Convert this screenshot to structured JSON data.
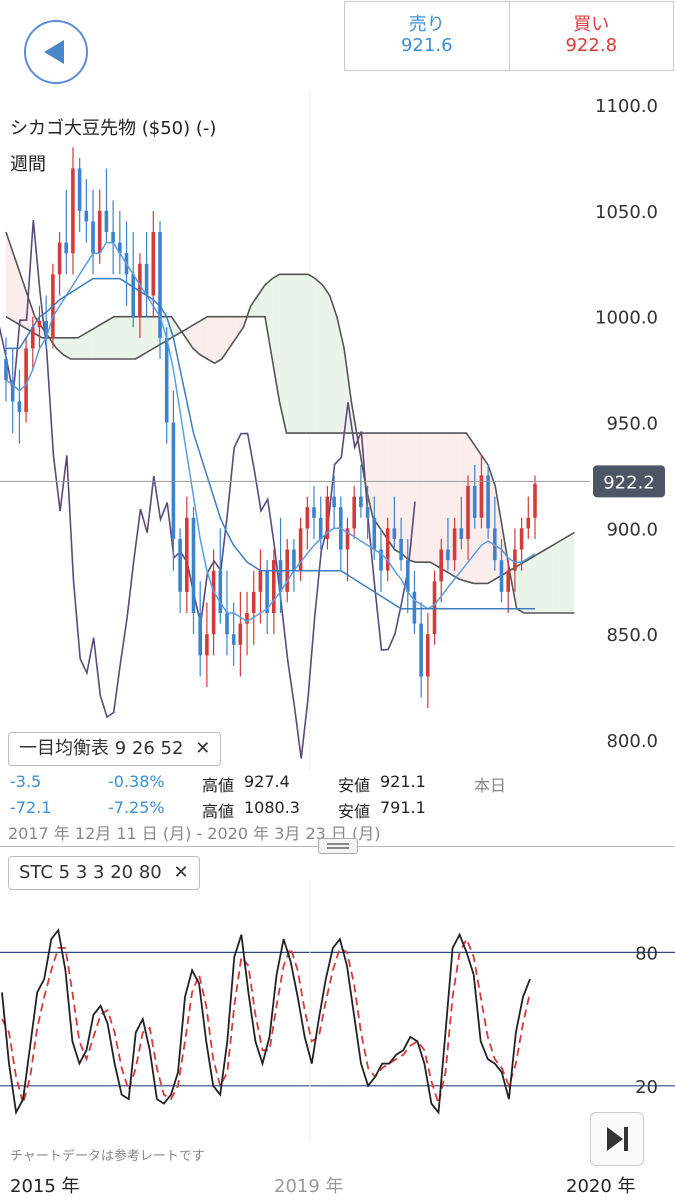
{
  "header": {
    "sell_label": "売り",
    "sell_value": "921.6",
    "buy_label": "買い",
    "buy_value": "922.8"
  },
  "instrument": {
    "name": "シカゴ大豆先物 ($50) (-)",
    "period": "週間"
  },
  "chart_data": [
    {
      "type": "candlestick",
      "title": "シカゴ大豆先物 ($50) (-)",
      "yticks": [
        "1100.0",
        "1050.0",
        "1000.0",
        "950.0",
        "900.0",
        "850.0",
        "800.0"
      ],
      "ylim": [
        790,
        1110
      ],
      "current_price": 922.2,
      "current_price_label": "922.2",
      "indicator": {
        "name": "一目均衡表",
        "params": "9 26 52"
      },
      "candles": [
        [
          980,
          990,
          960,
          970
        ],
        [
          970,
          985,
          945,
          960
        ],
        [
          960,
          975,
          940,
          955
        ],
        [
          955,
          990,
          950,
          985
        ],
        [
          985,
          1000,
          975,
          995
        ],
        [
          995,
          1005,
          985,
          998
        ],
        [
          998,
          1010,
          985,
          990
        ],
        [
          990,
          1025,
          985,
          1020
        ],
        [
          1020,
          1040,
          1010,
          1035
        ],
        [
          1035,
          1060,
          1020,
          1030
        ],
        [
          1030,
          1080,
          1020,
          1070
        ],
        [
          1070,
          1075,
          1040,
          1050
        ],
        [
          1050,
          1065,
          1035,
          1045
        ],
        [
          1045,
          1060,
          1020,
          1030
        ],
        [
          1030,
          1060,
          1025,
          1050
        ],
        [
          1050,
          1070,
          1035,
          1040
        ],
        [
          1040,
          1055,
          1020,
          1035
        ],
        [
          1035,
          1050,
          1020,
          1030
        ],
        [
          1030,
          1045,
          1005,
          1020
        ],
        [
          1020,
          1040,
          995,
          1000
        ],
        [
          1000,
          1030,
          990,
          1025
        ],
        [
          1025,
          1040,
          1000,
          1010
        ],
        [
          1010,
          1050,
          1000,
          1040
        ],
        [
          1040,
          1045,
          980,
          990
        ],
        [
          990,
          995,
          940,
          950
        ],
        [
          950,
          965,
          880,
          895
        ],
        [
          895,
          900,
          860,
          870
        ],
        [
          870,
          915,
          860,
          905
        ],
        [
          905,
          910,
          850,
          860
        ],
        [
          860,
          875,
          830,
          840
        ],
        [
          840,
          865,
          825,
          850
        ],
        [
          850,
          890,
          840,
          880
        ],
        [
          880,
          900,
          855,
          860
        ],
        [
          860,
          880,
          840,
          850
        ],
        [
          850,
          865,
          835,
          845
        ],
        [
          845,
          870,
          830,
          855
        ],
        [
          855,
          870,
          840,
          860
        ],
        [
          860,
          880,
          845,
          870
        ],
        [
          870,
          890,
          855,
          880
        ],
        [
          880,
          885,
          850,
          860
        ],
        [
          860,
          890,
          850,
          885
        ],
        [
          885,
          905,
          860,
          870
        ],
        [
          870,
          895,
          865,
          890
        ],
        [
          890,
          895,
          870,
          880
        ],
        [
          880,
          905,
          875,
          900
        ],
        [
          900,
          915,
          890,
          910
        ],
        [
          910,
          920,
          895,
          905
        ],
        [
          905,
          915,
          890,
          895
        ],
        [
          895,
          920,
          890,
          915
        ],
        [
          915,
          925,
          900,
          910
        ],
        [
          910,
          915,
          880,
          890
        ],
        [
          890,
          905,
          875,
          900
        ],
        [
          900,
          920,
          895,
          915
        ],
        [
          915,
          930,
          905,
          910
        ],
        [
          910,
          920,
          895,
          905
        ],
        [
          905,
          915,
          885,
          890
        ],
        [
          890,
          900,
          870,
          880
        ],
        [
          880,
          905,
          875,
          900
        ],
        [
          900,
          915,
          890,
          895
        ],
        [
          895,
          905,
          880,
          885
        ],
        [
          885,
          895,
          860,
          870
        ],
        [
          870,
          880,
          850,
          855
        ],
        [
          855,
          865,
          820,
          830
        ],
        [
          830,
          860,
          815,
          850
        ],
        [
          850,
          880,
          845,
          875
        ],
        [
          875,
          895,
          865,
          890
        ],
        [
          890,
          905,
          880,
          885
        ],
        [
          885,
          905,
          880,
          900
        ],
        [
          900,
          915,
          890,
          895
        ],
        [
          895,
          925,
          885,
          920
        ],
        [
          920,
          930,
          900,
          905
        ],
        [
          905,
          935,
          900,
          925
        ],
        [
          925,
          930,
          895,
          900
        ],
        [
          900,
          915,
          880,
          885
        ],
        [
          885,
          895,
          865,
          870
        ],
        [
          870,
          885,
          860,
          880
        ],
        [
          880,
          900,
          870,
          890
        ],
        [
          890,
          905,
          880,
          900
        ],
        [
          900,
          915,
          895,
          905
        ],
        [
          905,
          925,
          895,
          921
        ]
      ],
      "ichimoku_lines": {
        "tenkan": [
          970,
          968,
          965,
          968,
          975,
          985,
          990,
          1000,
          1005,
          1010,
          1015,
          1020,
          1025,
          1030,
          1030,
          1035,
          1035,
          1030,
          1025,
          1020,
          1015,
          1010,
          1005,
          1000,
          990,
          975,
          955,
          935,
          915,
          895,
          880,
          870,
          865,
          860,
          860,
          858,
          856,
          858,
          860,
          862,
          866,
          870,
          875,
          880,
          884,
          888,
          892,
          895,
          898,
          900,
          900,
          898,
          896,
          894,
          892,
          890,
          888,
          885,
          880,
          876,
          870,
          866,
          864,
          862,
          864,
          868,
          872,
          876,
          880,
          884,
          888,
          892,
          894,
          892,
          890,
          886,
          884,
          884,
          886,
          888
        ],
        "kijun": [
          985,
          985,
          985,
          990,
          995,
          1000,
          1002,
          1005,
          1008,
          1010,
          1012,
          1014,
          1016,
          1018,
          1018,
          1018,
          1018,
          1018,
          1016,
          1014,
          1012,
          1010,
          1008,
          1005,
          1000,
          990,
          975,
          960,
          945,
          935,
          925,
          915,
          905,
          898,
          892,
          888,
          884,
          882,
          880,
          880,
          880,
          880,
          880,
          880,
          880,
          880,
          880,
          880,
          880,
          880,
          880,
          878,
          876,
          874,
          872,
          870,
          868,
          866,
          864,
          862,
          862,
          862,
          862,
          862,
          862,
          862,
          862,
          862,
          862,
          862,
          862,
          862,
          862,
          862,
          862,
          862,
          862,
          862,
          862,
          862
        ]
      },
      "ichimoku_cloud": {
        "span_a": [
          1000,
          998,
          996,
          994,
          992,
          990,
          990,
          990,
          990,
          990,
          990,
          992,
          994,
          996,
          998,
          1000,
          1000,
          1000,
          1000,
          1000,
          1000,
          1000,
          1000,
          1000,
          995,
          990,
          985,
          982,
          980,
          978,
          980,
          985,
          990,
          995,
          1005,
          1010,
          1015,
          1018,
          1020,
          1020,
          1020,
          1020,
          1020,
          1018,
          1015,
          1010,
          1000,
          985,
          960,
          940,
          920,
          905,
          900,
          895,
          890,
          888,
          885,
          884,
          884,
          884,
          882,
          880,
          878,
          876,
          875,
          874,
          874,
          874,
          876,
          878,
          880,
          882,
          884,
          886,
          888,
          890,
          892,
          894,
          896,
          898
        ],
        "span_b": [
          1040,
          1030,
          1020,
          1010,
          1000,
          995,
          990,
          985,
          982,
          980,
          980,
          980,
          980,
          980,
          980,
          980,
          980,
          980,
          980,
          982,
          984,
          986,
          988,
          990,
          992,
          994,
          996,
          998,
          1000,
          1000,
          1000,
          1000,
          1000,
          1000,
          1000,
          1000,
          1000,
          980,
          960,
          945,
          945,
          945,
          945,
          945,
          945,
          945,
          945,
          945,
          945,
          945,
          945,
          945,
          945,
          945,
          945,
          945,
          945,
          945,
          945,
          945,
          945,
          945,
          945,
          945,
          945,
          940,
          935,
          930,
          920,
          900,
          880,
          862,
          860,
          860,
          860,
          860,
          860,
          860,
          860,
          860
        ]
      },
      "stats": {
        "change": "-3.5",
        "change_pct": "-0.38%",
        "high_label": "高値",
        "high": "927.4",
        "low_label": "安値",
        "low": "921.1",
        "day_label": "本日",
        "range_change": "-72.1",
        "range_change_pct": "-7.25%",
        "range_high": "1080.3",
        "range_low": "791.1",
        "date_range": "2017 年 12月 11 日 (月) - 2020 年 3月 23 日 (月)"
      }
    },
    {
      "type": "line",
      "title": "STC",
      "indicator": {
        "name": "STC",
        "params": "5 3 3 20 80"
      },
      "yticks": [
        "80",
        "20"
      ],
      "levels": [
        80,
        20
      ],
      "ylim": [
        0,
        100
      ],
      "series": [
        {
          "values": [
            62,
            30,
            8,
            14,
            38,
            62,
            68,
            86,
            90,
            72,
            40,
            30,
            36,
            52,
            56,
            48,
            30,
            16,
            14,
            44,
            50,
            36,
            14,
            12,
            16,
            26,
            60,
            72,
            66,
            40,
            20,
            16,
            40,
            78,
            88,
            62,
            40,
            30,
            42,
            70,
            86,
            76,
            60,
            42,
            30,
            50,
            68,
            82,
            86,
            74,
            52,
            30,
            20,
            24,
            30,
            30,
            34,
            36,
            42,
            40,
            30,
            12,
            8,
            44,
            82,
            88,
            80,
            70,
            40,
            32,
            30,
            26,
            14,
            44,
            60,
            68
          ]
        },
        {
          "values": [
            50,
            44,
            24,
            12,
            24,
            46,
            60,
            72,
            82,
            82,
            62,
            40,
            32,
            42,
            52,
            54,
            44,
            28,
            18,
            28,
            44,
            46,
            28,
            16,
            14,
            20,
            40,
            62,
            70,
            56,
            32,
            20,
            26,
            56,
            78,
            74,
            52,
            36,
            36,
            56,
            74,
            82,
            72,
            54,
            40,
            42,
            58,
            72,
            82,
            80,
            66,
            44,
            28,
            24,
            28,
            30,
            32,
            34,
            38,
            40,
            36,
            22,
            12,
            26,
            60,
            80,
            86,
            78,
            60,
            42,
            32,
            28,
            20,
            30,
            48,
            62
          ]
        }
      ]
    }
  ],
  "xaxis": {
    "labels": [
      "2015 年",
      "2019 年",
      "2020 年"
    ]
  },
  "disclaimer": "チャートデータは参考レートです",
  "colors": {
    "up": "#d53a3a",
    "down": "#3b83cf",
    "tenkan": "#5a9ee0",
    "kijun": "#3b7dbf",
    "cloud_line": "#555555",
    "lagging": "#5b4a7a",
    "stc_main": "#222222",
    "stc_signal": "#d53a3a",
    "level_line": "#2b4a7a"
  }
}
